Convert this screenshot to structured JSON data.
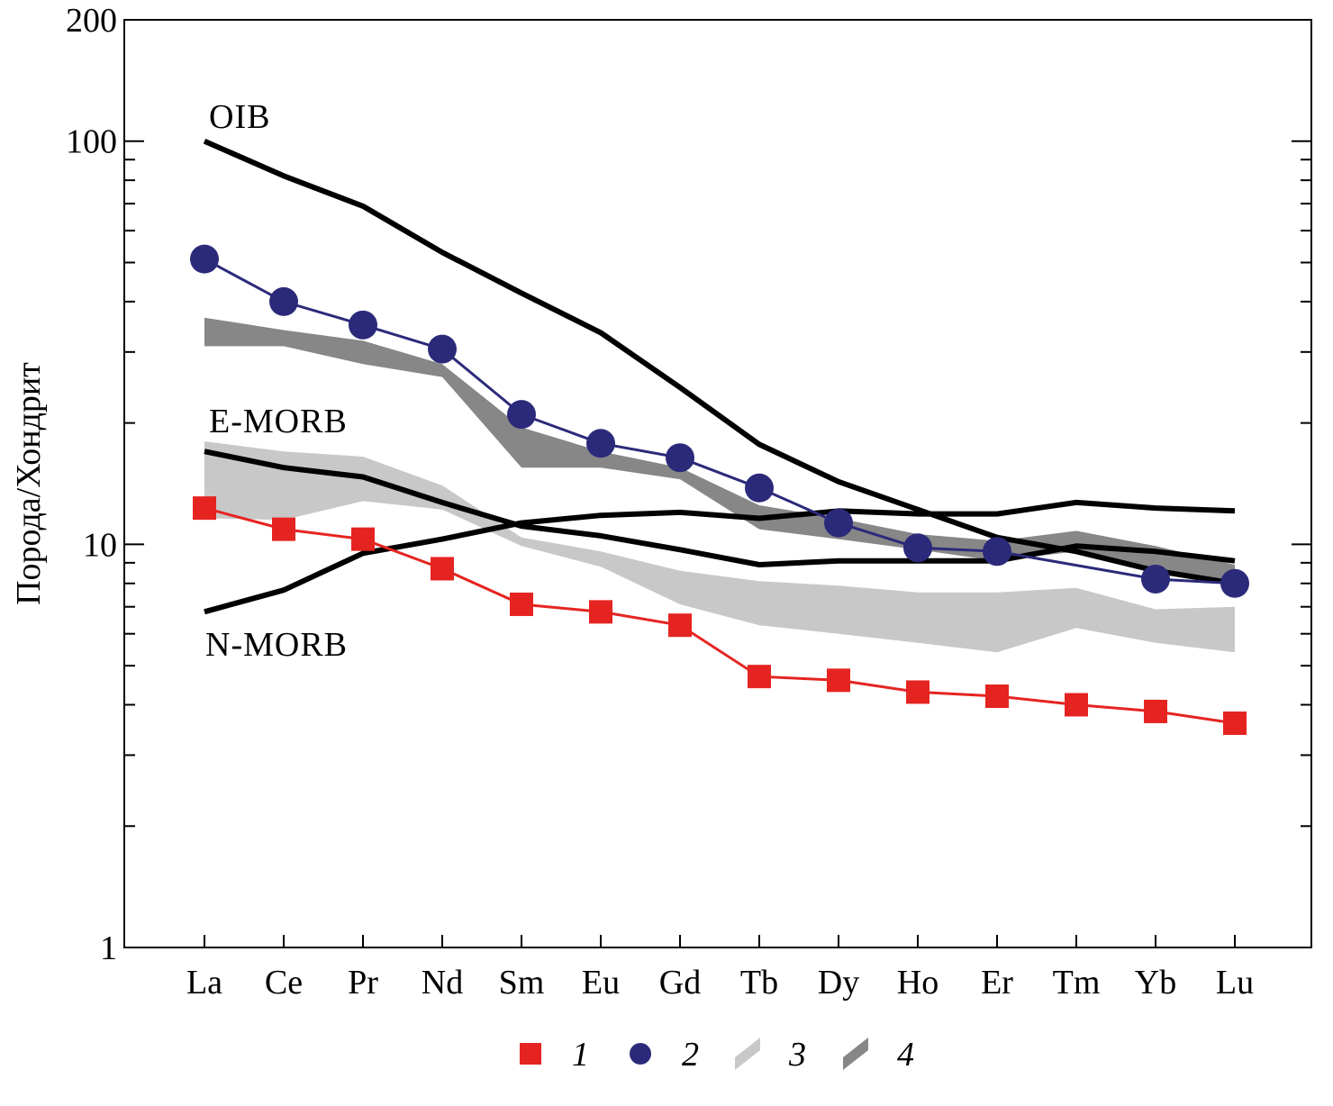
{
  "chart_data": {
    "type": "line",
    "scale": {
      "y": "log"
    },
    "ylabel": "Порода/Хондрит",
    "xlabel": "",
    "ylim": [
      1,
      200
    ],
    "y_tick_labels": [
      {
        "value": 1,
        "label": "1"
      },
      {
        "value": 10,
        "label": "10"
      },
      {
        "value": 100,
        "label": "100"
      },
      {
        "value": 200,
        "label": "200"
      }
    ],
    "categories": [
      "La",
      "Ce",
      "Pr",
      "Nd",
      "Sm",
      "Eu",
      "Gd",
      "Tb",
      "Dy",
      "Ho",
      "Er",
      "Tm",
      "Yb",
      "Lu"
    ],
    "series": [
      {
        "key": "s1",
        "name": "1",
        "marker": "square",
        "color": "#e52421",
        "values": [
          12.3,
          10.9,
          10.3,
          8.7,
          7.1,
          6.8,
          6.3,
          4.7,
          4.6,
          4.3,
          4.2,
          4.0,
          3.85,
          3.6
        ]
      },
      {
        "key": "s2",
        "name": "2",
        "marker": "circle",
        "color": "#2b2a7a",
        "values": [
          51,
          40,
          35,
          30.5,
          21,
          17.8,
          16.4,
          13.8,
          11.3,
          9.8,
          9.6,
          null,
          8.2,
          8.0
        ]
      }
    ],
    "bands": [
      {
        "key": "b3",
        "name": "3",
        "color": "#c8c8c8",
        "upper": [
          18.0,
          17.0,
          16.5,
          14.0,
          10.4,
          9.6,
          8.6,
          8.1,
          7.9,
          7.6,
          7.6,
          7.8,
          6.9,
          7.0
        ],
        "lower": [
          11.6,
          11.5,
          12.8,
          12.2,
          9.9,
          8.8,
          7.1,
          6.3,
          6.0,
          5.7,
          5.4,
          6.2,
          5.7,
          5.4
        ]
      },
      {
        "key": "b4",
        "name": "4",
        "color": "#878787",
        "upper": [
          36.5,
          34.0,
          32.0,
          28.0,
          19.5,
          17.0,
          15.5,
          12.5,
          11.6,
          10.6,
          10.2,
          10.8,
          9.9,
          8.9
        ],
        "lower": [
          31.0,
          31.0,
          28.0,
          26.0,
          15.5,
          15.5,
          14.5,
          10.9,
          10.3,
          9.7,
          9.1,
          9.6,
          8.7,
          8.1
        ]
      }
    ],
    "reference_lines": [
      {
        "key": "oib",
        "name": "OIB",
        "color": "#000000",
        "values": [
          100,
          82,
          69,
          53,
          42,
          33.5,
          24.5,
          17.7,
          14.3,
          12.2,
          10.4,
          9.6,
          8.6,
          8.0
        ]
      },
      {
        "key": "emorb",
        "name": "E-MORB",
        "color": "#000000",
        "values": [
          17,
          15.5,
          14.7,
          12.7,
          11.1,
          10.5,
          9.7,
          8.9,
          9.1,
          9.1,
          9.1,
          9.9,
          9.6,
          9.1
        ]
      },
      {
        "key": "nmorb",
        "name": "N-MORB",
        "color": "#000000",
        "values": [
          6.8,
          7.7,
          9.5,
          10.3,
          11.3,
          11.8,
          12.0,
          11.6,
          12.1,
          11.9,
          11.9,
          12.7,
          12.3,
          12.1
        ]
      }
    ],
    "legend": {
      "placement": "bottom",
      "entries": [
        {
          "label": "1",
          "symbol": "square",
          "color": "#e52421"
        },
        {
          "label": "2",
          "symbol": "circle",
          "color": "#2b2a7a"
        },
        {
          "label": "3",
          "symbol": "band",
          "color": "#c8c8c8"
        },
        {
          "label": "4",
          "symbol": "band",
          "color": "#878787"
        }
      ]
    },
    "grid": false
  }
}
